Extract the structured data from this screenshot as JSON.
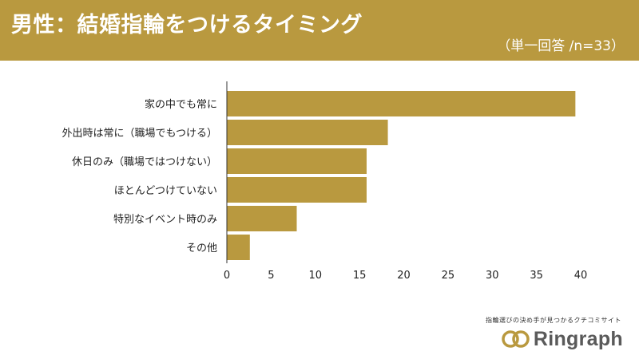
{
  "header": {
    "title": "男性：結婚指輪をつけるタイミング",
    "subtitle": "（単一回答 /n=33）"
  },
  "brand": {
    "tagline": "指輪選びの決め手が見つかるクチコミサイト",
    "logo_text": "Ringraph"
  },
  "colors": {
    "accent": "#b9993f",
    "bar": "#b9993f",
    "axis": "#333333"
  },
  "chart_data": {
    "type": "bar",
    "orientation": "horizontal",
    "title": "",
    "xlabel": "",
    "ylabel": "",
    "categories": [
      "家の中でも常に",
      "外出時は常に（職場でもつける）",
      "休日のみ（職場ではつけない）",
      "ほとんどつけていない",
      "特別なイベント時のみ",
      "その他"
    ],
    "values": [
      39.4,
      18.2,
      15.8,
      15.8,
      7.9,
      2.6
    ],
    "xlim": [
      0,
      40
    ],
    "xticks": [
      0,
      5,
      10,
      15,
      20,
      25,
      30,
      35,
      40
    ],
    "grid": false,
    "legend": "none"
  }
}
